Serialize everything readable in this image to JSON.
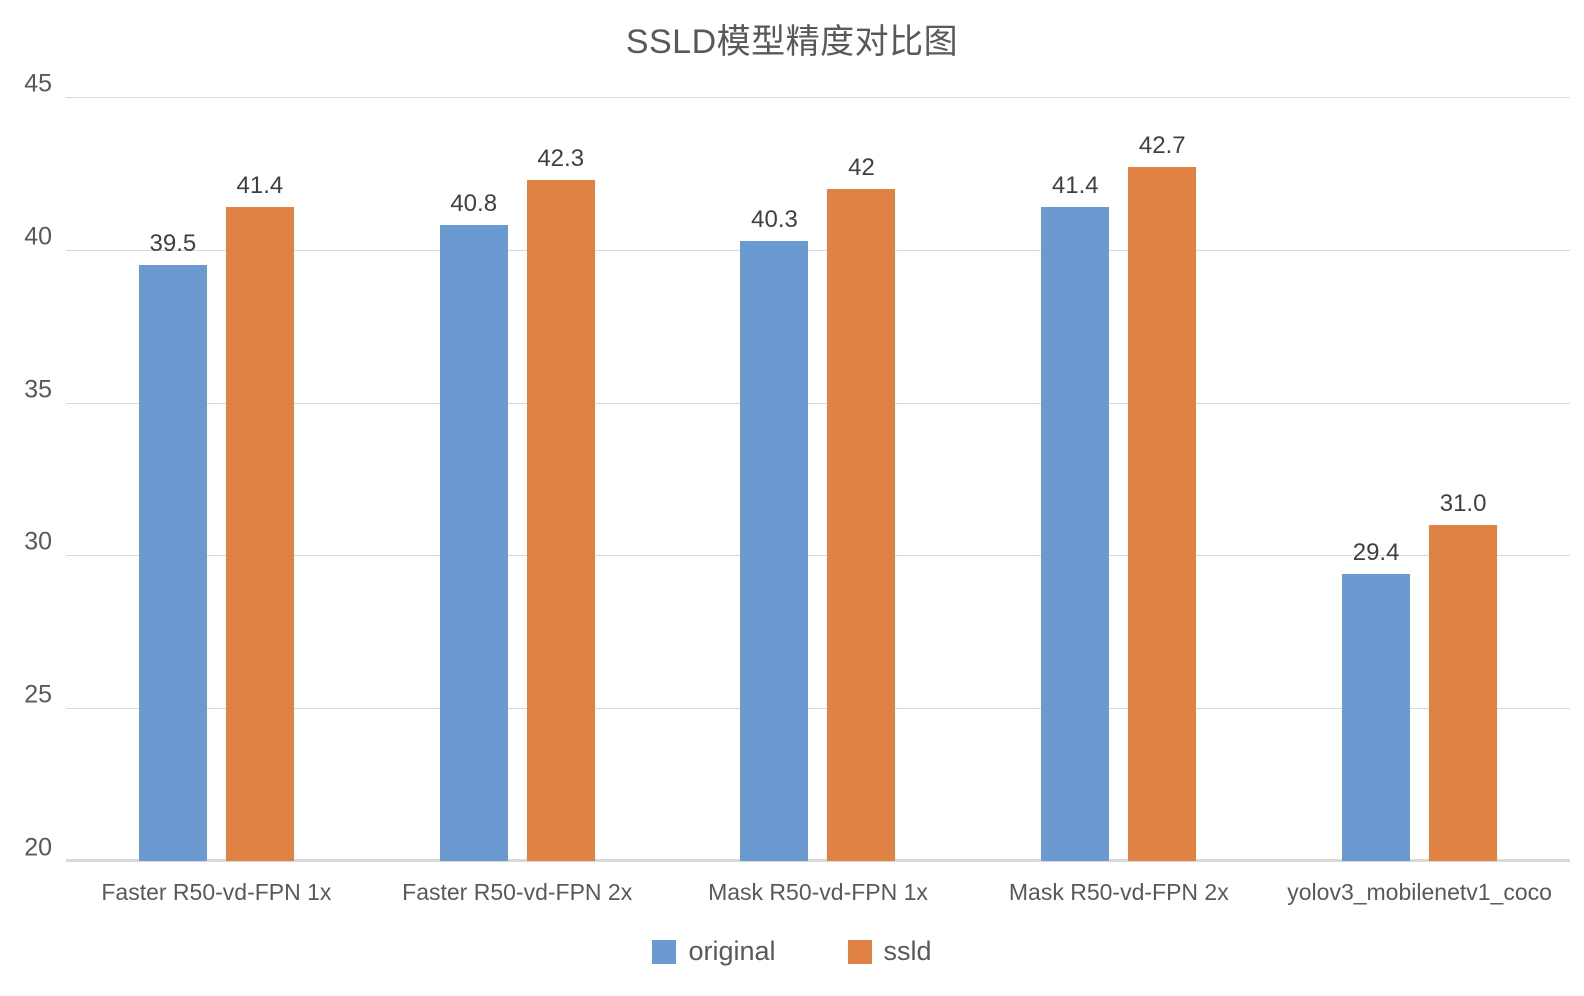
{
  "title": "SSLD模型精度对比图",
  "chart_data": {
    "type": "bar",
    "title": "SSLD模型精度对比图",
    "categories": [
      "Faster R50-vd-FPN 1x",
      "Faster  R50-vd-FPN 2x",
      "Mask R50-vd-FPN  1x",
      "Mask R50-vd-FPN  2x",
      "yolov3_mobilenetv1_coco"
    ],
    "series": [
      {
        "name": "original",
        "color": "#6a9ad0",
        "values": [
          39.5,
          40.8,
          40.3,
          41.4,
          29.4
        ],
        "labels": [
          "39.5",
          "40.8",
          "40.3",
          "41.4",
          "29.4"
        ]
      },
      {
        "name": "ssld",
        "color": "#df8244",
        "values": [
          41.4,
          42.3,
          42.0,
          42.7,
          31.0
        ],
        "labels": [
          "41.4",
          "42.3",
          "42",
          "42.7",
          "31.0"
        ]
      }
    ],
    "xlabel": "",
    "ylabel": "",
    "ylim": [
      20,
      45
    ],
    "yticks": [
      20,
      25,
      30,
      35,
      40,
      45
    ],
    "grid": true,
    "legend_position": "bottom",
    "colors": {
      "gridline": "#d9d9d9",
      "axis_line": "#d9d9d9",
      "title_text": "#595959",
      "tick_text": "#595959",
      "data_label_text": "#404040",
      "legend_text": "#595959",
      "background": "#ffffff"
    }
  }
}
